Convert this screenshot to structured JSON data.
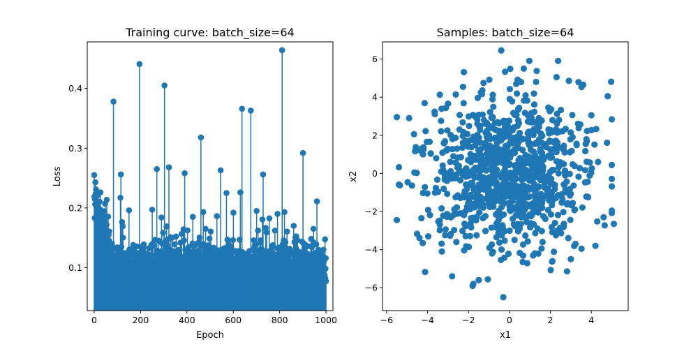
{
  "chart_data": [
    {
      "type": "stem",
      "title": "Training curve: batch_size=64",
      "xlabel": "Epoch",
      "ylabel": "Loss",
      "xlim": [
        -30,
        1030
      ],
      "ylim": [
        0.028,
        0.478
      ],
      "xticks": [
        0,
        200,
        400,
        600,
        800,
        1000
      ],
      "xtick_labels": [
        "0",
        "200",
        "400",
        "600",
        "800",
        "1000"
      ],
      "yticks": [
        0.1,
        0.2,
        0.3,
        0.4
      ],
      "ytick_labels": [
        "0.1",
        "0.2",
        "0.3",
        "0.4"
      ],
      "color": "#1f77b4",
      "grid": false,
      "n_points": 1000,
      "epoch_range": [
        0,
        1000
      ],
      "spikes": [
        {
          "x": 5,
          "y": 0.243
        },
        {
          "x": 8,
          "y": 0.231
        },
        {
          "x": 27,
          "y": 0.226
        },
        {
          "x": 47,
          "y": 0.207
        },
        {
          "x": 83,
          "y": 0.378
        },
        {
          "x": 115,
          "y": 0.256
        },
        {
          "x": 113,
          "y": 0.217
        },
        {
          "x": 150,
          "y": 0.196
        },
        {
          "x": 195,
          "y": 0.441
        },
        {
          "x": 250,
          "y": 0.197
        },
        {
          "x": 270,
          "y": 0.265
        },
        {
          "x": 290,
          "y": 0.184
        },
        {
          "x": 303,
          "y": 0.405
        },
        {
          "x": 322,
          "y": 0.268
        },
        {
          "x": 390,
          "y": 0.258
        },
        {
          "x": 425,
          "y": 0.185
        },
        {
          "x": 460,
          "y": 0.318
        },
        {
          "x": 470,
          "y": 0.193
        },
        {
          "x": 480,
          "y": 0.165
        },
        {
          "x": 545,
          "y": 0.263
        },
        {
          "x": 570,
          "y": 0.225
        },
        {
          "x": 600,
          "y": 0.192
        },
        {
          "x": 630,
          "y": 0.226
        },
        {
          "x": 637,
          "y": 0.366
        },
        {
          "x": 675,
          "y": 0.363
        },
        {
          "x": 700,
          "y": 0.195
        },
        {
          "x": 728,
          "y": 0.256
        },
        {
          "x": 790,
          "y": 0.19
        },
        {
          "x": 810,
          "y": 0.464
        },
        {
          "x": 820,
          "y": 0.193
        },
        {
          "x": 860,
          "y": 0.17
        },
        {
          "x": 900,
          "y": 0.292
        },
        {
          "x": 945,
          "y": 0.165
        },
        {
          "x": 960,
          "y": 0.211
        }
      ],
      "lows": [
        {
          "x": 448,
          "y": 0.067
        },
        {
          "x": 455,
          "y": 0.06
        },
        {
          "x": 463,
          "y": 0.053
        },
        {
          "x": 468,
          "y": 0.049
        },
        {
          "x": 745,
          "y": 0.063
        },
        {
          "x": 985,
          "y": 0.065
        }
      ]
    },
    {
      "type": "scatter",
      "title": "Samples: batch_size=64",
      "xlabel": "x1",
      "ylabel": "x2",
      "xlim": [
        -6.2,
        5.8
      ],
      "ylim": [
        -7.2,
        6.9
      ],
      "xticks": [
        -6,
        -4,
        -2,
        0,
        2,
        4
      ],
      "xtick_labels": [
        "−6",
        "−4",
        "−2",
        "0",
        "2",
        "4"
      ],
      "yticks": [
        -6,
        -4,
        -2,
        0,
        2,
        4,
        6
      ],
      "ytick_labels": [
        "−6",
        "−4",
        "−2",
        "0",
        "2",
        "4",
        "6"
      ],
      "color": "#1f77b4",
      "grid": false,
      "n_points": 1000,
      "distribution": {
        "mean": [
          0,
          0
        ],
        "std": [
          2,
          2
        ]
      },
      "outliers": [
        {
          "x": -0.4,
          "y": 6.45
        },
        {
          "x": -0.3,
          "y": -6.5
        },
        {
          "x": -5.5,
          "y": -2.45
        },
        {
          "x": -5.5,
          "y": 2.95
        },
        {
          "x": 5.1,
          "y": -2.65
        },
        {
          "x": 4.8,
          "y": 4.05
        },
        {
          "x": -1.8,
          "y": -5.9
        },
        {
          "x": -2.8,
          "y": -5.4
        },
        {
          "x": -1.5,
          "y": -5.6
        },
        {
          "x": 0.7,
          "y": 5.5
        },
        {
          "x": 2.3,
          "y": 5.05
        },
        {
          "x": 4.2,
          "y": -3.8
        },
        {
          "x": 3.0,
          "y": -4.5
        },
        {
          "x": -3.3,
          "y": -4.1
        },
        {
          "x": -4.3,
          "y": -2.35
        },
        {
          "x": 4.0,
          "y": 3.05
        },
        {
          "x": -4.9,
          "y": 2.9
        },
        {
          "x": 4.6,
          "y": -2.3
        },
        {
          "x": 2.1,
          "y": -4.6
        },
        {
          "x": 1.3,
          "y": 4.8
        }
      ]
    }
  ]
}
